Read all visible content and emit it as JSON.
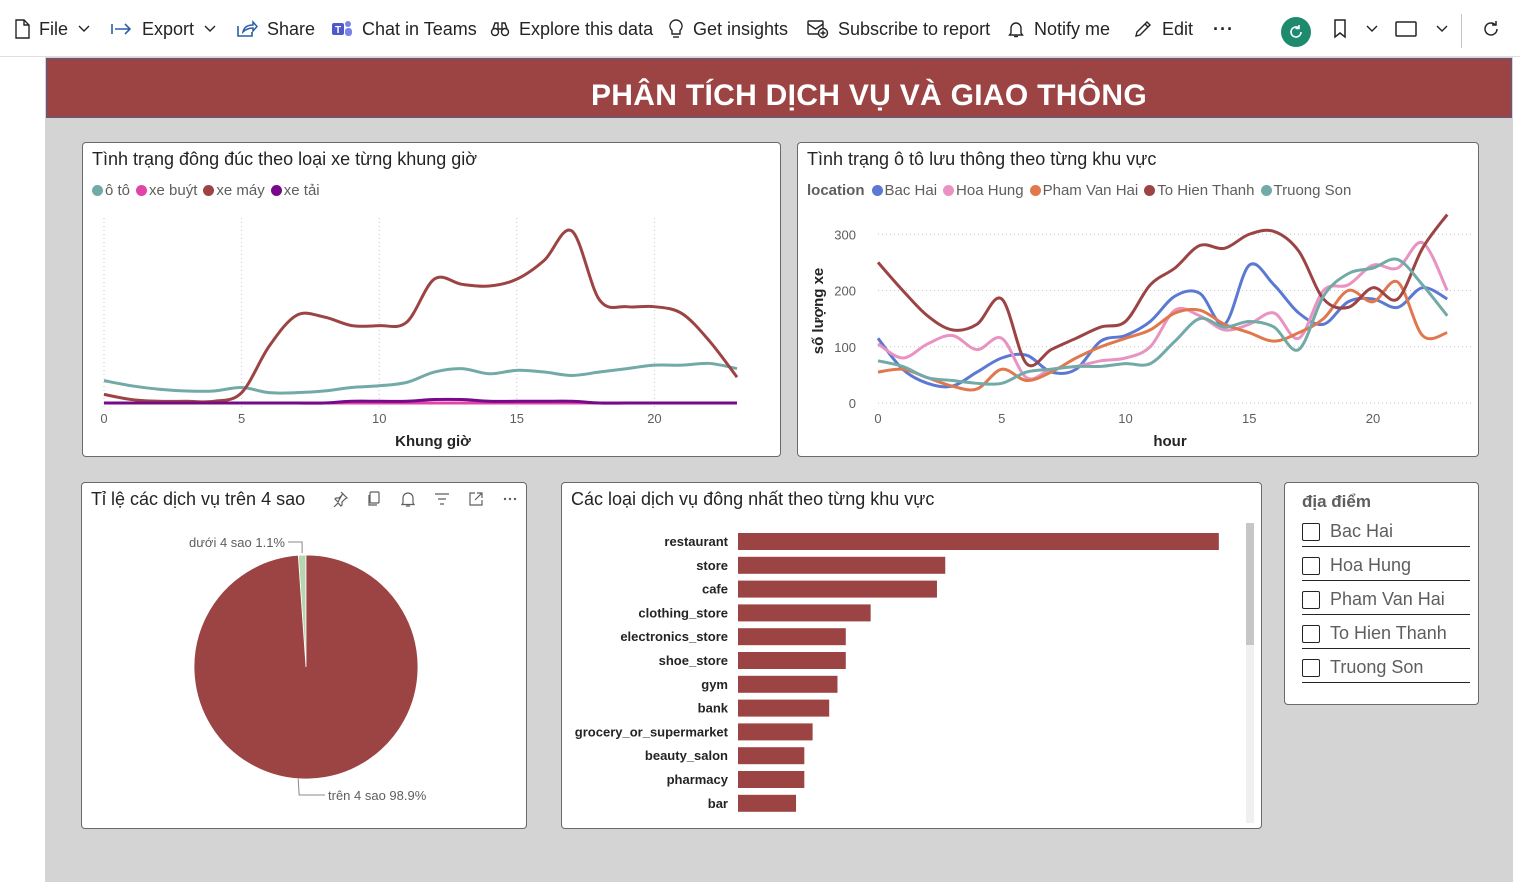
{
  "toolbar": {
    "file": "File",
    "export": "Export",
    "share": "Share",
    "chat_in_teams": "Chat in Teams",
    "explore": "Explore this data",
    "insights": "Get insights",
    "subscribe": "Subscribe to report",
    "notify": "Notify me",
    "edit": "Edit",
    "more": "···"
  },
  "report": {
    "title": "PHÂN TÍCH DỊCH VỤ VÀ GIAO THÔNG"
  },
  "colors": {
    "accent": "#9c4444",
    "teal": "#72aaa8",
    "canvas_bg": "#d4d4d4"
  },
  "visuals": {
    "congestion": {
      "title": "Tình trạng đông đúc theo loại xe từng khung giờ",
      "x_title": "Khung giờ"
    },
    "traffic": {
      "title": "Tình trạng ô tô lưu thông theo từng khu vực",
      "legend_title": "location",
      "x_title": "hour",
      "y_title": "số lượng xe"
    },
    "pie": {
      "title": "Tỉ lệ các dịch vụ trên 4 sao"
    },
    "services": {
      "title": "Các loại dịch vụ đông nhất theo từng khu vực"
    },
    "slicer": {
      "title": "địa điểm",
      "items": [
        "Bac Hai",
        "Hoa Hung",
        "Pham Van Hai",
        "To Hien Thanh",
        "Truong Son"
      ]
    }
  },
  "chart_data": [
    {
      "type": "line",
      "title": "Tình trạng đông đúc theo loại xe từng khung giờ",
      "xlabel": "Khung giờ",
      "ylabel": "",
      "xlim": [
        0,
        23
      ],
      "ylim": [
        0,
        100
      ],
      "x": [
        0,
        1,
        2,
        3,
        4,
        5,
        6,
        7,
        8,
        9,
        10,
        11,
        12,
        13,
        14,
        15,
        16,
        17,
        18,
        19,
        20,
        21,
        22,
        23
      ],
      "legend_position": "top-left",
      "grid": "vertical-dotted",
      "series": [
        {
          "name": "ô tô",
          "color": "#72aaa8",
          "values": [
            13,
            10,
            8,
            7,
            7,
            9,
            6,
            6,
            7,
            9,
            10,
            12,
            18,
            20,
            17,
            19,
            18,
            16,
            18,
            20,
            22,
            22,
            23,
            20
          ]
        },
        {
          "name": "xe buýt",
          "color": "#e044a7",
          "values": [
            0,
            0,
            0,
            0,
            0,
            0,
            0,
            0,
            0,
            0,
            0,
            0,
            0,
            0,
            0,
            0,
            0,
            0,
            0,
            0,
            0,
            0,
            0,
            0
          ]
        },
        {
          "name": "xe máy",
          "color": "#9c4444",
          "values": [
            5,
            2,
            1,
            1,
            1,
            6,
            33,
            51,
            50,
            45,
            45,
            47,
            72,
            69,
            68,
            72,
            83,
            100,
            60,
            56,
            56,
            52,
            36,
            15
          ]
        },
        {
          "name": "xe tải",
          "color": "#750b8a",
          "values": [
            0,
            0,
            0,
            0,
            0,
            0,
            0,
            0,
            0,
            1,
            1,
            1,
            2,
            2,
            1,
            1,
            1,
            1,
            0,
            0,
            0,
            0,
            0,
            0
          ]
        }
      ]
    },
    {
      "type": "line",
      "title": "Tình trạng ô tô lưu thông theo từng khu vực",
      "xlabel": "hour",
      "ylabel": "số lượng xe",
      "xlim": [
        0,
        24
      ],
      "ylim": [
        0,
        320
      ],
      "yticks": [
        0,
        100,
        200,
        300
      ],
      "xticks": [
        0,
        5,
        10,
        15,
        20
      ],
      "legend_title": "location",
      "legend_position": "top-left",
      "x": [
        0,
        1,
        2,
        3,
        4,
        5,
        6,
        7,
        8,
        9,
        10,
        11,
        12,
        13,
        14,
        15,
        16,
        17,
        18,
        19,
        20,
        21,
        22,
        23
      ],
      "series": [
        {
          "name": "Bac Hai",
          "color": "#5b79d3",
          "values": [
            115,
            60,
            35,
            30,
            55,
            80,
            85,
            55,
            60,
            110,
            120,
            145,
            190,
            195,
            140,
            245,
            210,
            160,
            140,
            180,
            185,
            170,
            205,
            185
          ]
        },
        {
          "name": "Hoa Hung",
          "color": "#e893c2",
          "values": [
            105,
            80,
            105,
            120,
            95,
            115,
            45,
            60,
            65,
            75,
            80,
            100,
            165,
            155,
            130,
            140,
            160,
            115,
            200,
            210,
            245,
            240,
            285,
            200
          ]
        },
        {
          "name": "Pham Van Hai",
          "color": "#e0774d",
          "values": [
            55,
            60,
            45,
            30,
            25,
            60,
            40,
            55,
            80,
            100,
            115,
            130,
            160,
            165,
            140,
            125,
            110,
            125,
            150,
            200,
            180,
            215,
            120,
            125
          ]
        },
        {
          "name": "To Hien Thanh",
          "color": "#9c4444",
          "values": [
            250,
            200,
            155,
            130,
            140,
            185,
            70,
            95,
            115,
            135,
            145,
            210,
            240,
            280,
            275,
            300,
            305,
            270,
            185,
            170,
            205,
            185,
            275,
            335
          ]
        },
        {
          "name": "Truong Son",
          "color": "#72aaa8",
          "values": [
            75,
            65,
            45,
            40,
            35,
            35,
            55,
            60,
            65,
            65,
            70,
            70,
            110,
            150,
            135,
            145,
            135,
            95,
            190,
            230,
            240,
            255,
            210,
            155
          ]
        }
      ]
    },
    {
      "type": "pie",
      "title": "Tỉ lệ các dịch vụ trên 4 sao",
      "slices": [
        {
          "label": "trên 4 sao",
          "value": 98.9,
          "display": "trên 4 sao 98.9%",
          "color": "#9c4444"
        },
        {
          "label": "dưới 4 sao",
          "value": 1.1,
          "display": "dưới 4 sao 1.1%",
          "color": "#b6d5b0"
        }
      ]
    },
    {
      "type": "bar",
      "orientation": "horizontal",
      "title": "Các loại dịch vụ đông nhất theo từng khu vực",
      "categories": [
        "restaurant",
        "store",
        "cafe",
        "clothing_store",
        "electronics_store",
        "shoe_store",
        "gym",
        "bank",
        "grocery_or_supermarket",
        "beauty_salon",
        "pharmacy",
        "bar"
      ],
      "values": [
        58,
        25,
        24,
        16,
        13,
        13,
        12,
        11,
        9,
        8,
        8,
        7
      ],
      "xlim": [
        0,
        62
      ],
      "color": "#9c4444"
    }
  ]
}
